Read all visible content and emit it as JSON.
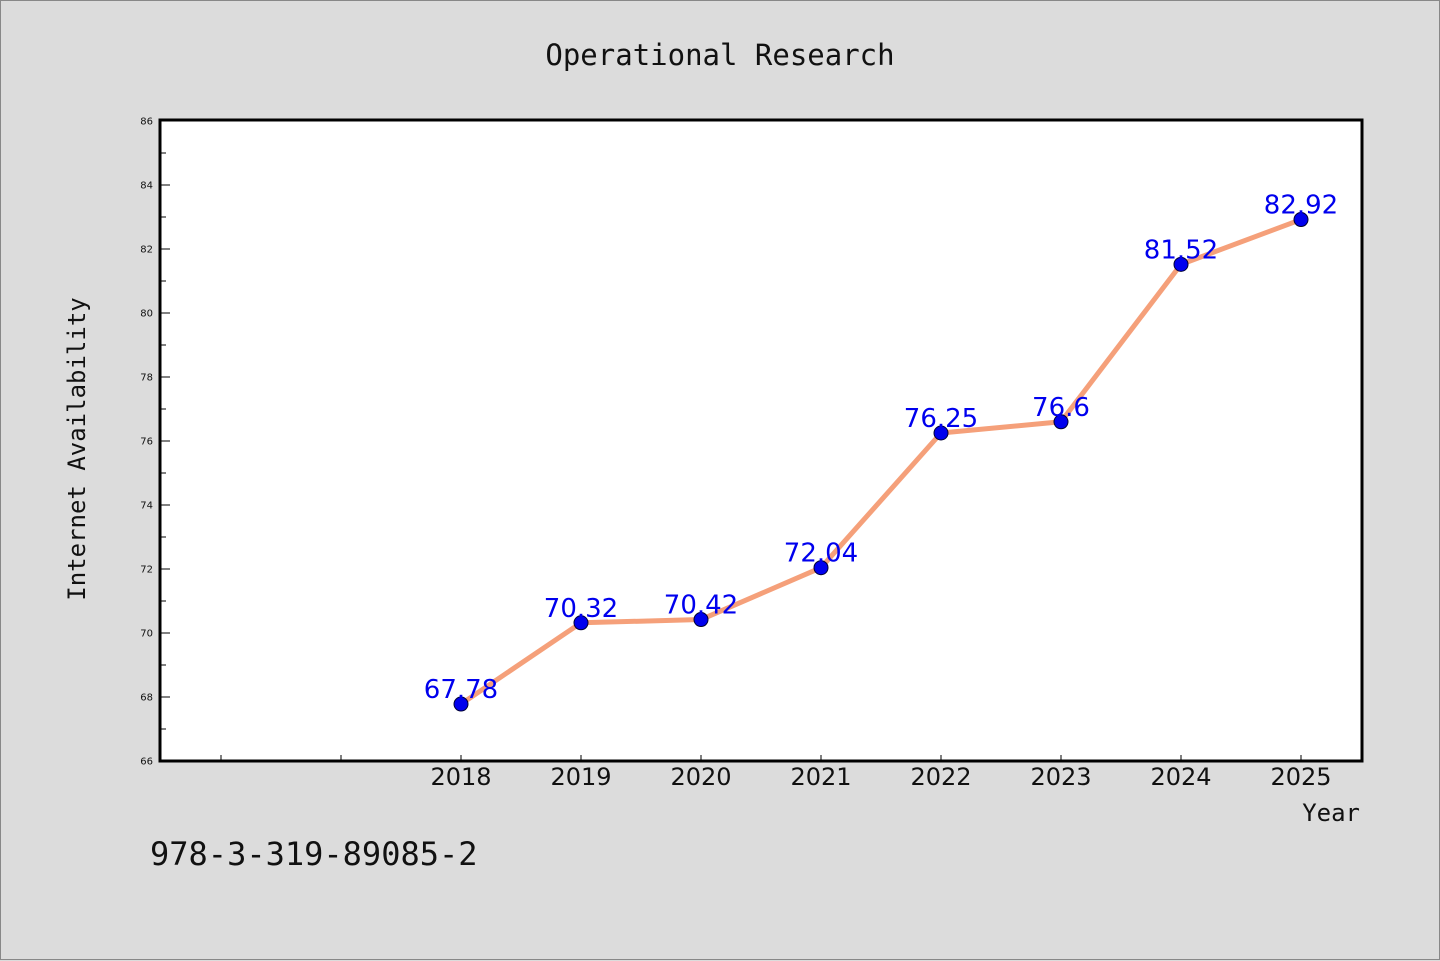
{
  "chart_data": {
    "type": "line",
    "title": "Operational Research",
    "xlabel": "Year",
    "ylabel": "Internet Availability",
    "x": [
      "2018",
      "2019",
      "2020",
      "2021",
      "2022",
      "2023",
      "2024",
      "2025"
    ],
    "series": [
      {
        "values": [
          67.78,
          70.32,
          70.42,
          72.04,
          76.25,
          76.6,
          81.52,
          82.92
        ],
        "labels": [
          "67.78",
          "70.32",
          "70.42",
          "72.04",
          "76.25",
          "76.6",
          "81.52",
          "82.92"
        ]
      }
    ],
    "ylim": [
      66,
      86
    ],
    "yticks": [
      66,
      68,
      70,
      72,
      74,
      76,
      78,
      80,
      82,
      84,
      86
    ],
    "ytick_labels": [
      "66",
      "68",
      "70",
      "72",
      "74",
      "76",
      "78",
      "80",
      "82",
      "84",
      "86"
    ],
    "x_slots": 10,
    "grid": false,
    "line_color": "#f5a07a",
    "marker_color": "#0000ee",
    "label_color": "#0000ee"
  },
  "footer": {
    "isbn": "978-3-319-89085-2"
  }
}
